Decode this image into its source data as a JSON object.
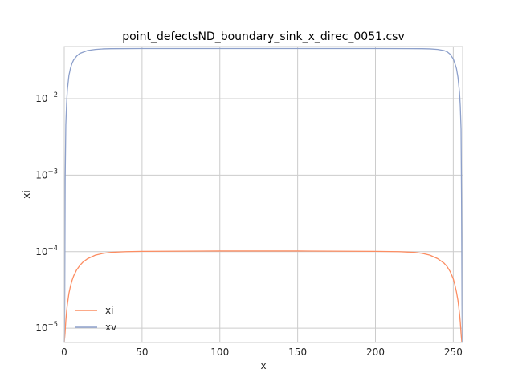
{
  "chart_data": {
    "type": "line",
    "title": "point_defectsND_boundary_sink_x_direc_0051.csv",
    "xlabel": "x",
    "ylabel": "xi",
    "xlim": [
      0,
      256
    ],
    "ylim": [
      6.5e-06,
      0.048
    ],
    "yscale": "log",
    "grid": true,
    "legend_position": "lower-left",
    "x_ticks": [
      {
        "value": 0,
        "label": "0"
      },
      {
        "value": 50,
        "label": "50"
      },
      {
        "value": 100,
        "label": "100"
      },
      {
        "value": 150,
        "label": "150"
      },
      {
        "value": 200,
        "label": "200"
      },
      {
        "value": 250,
        "label": "250"
      }
    ],
    "y_ticks": [
      {
        "value": 1e-05,
        "base": "10",
        "exp": "−5"
      },
      {
        "value": 0.0001,
        "base": "10",
        "exp": "−4"
      },
      {
        "value": 0.001,
        "base": "10",
        "exp": "−3"
      },
      {
        "value": 0.01,
        "base": "10",
        "exp": "−2"
      }
    ],
    "series": [
      {
        "name": "xi",
        "color": "#fc8d62",
        "x": [
          0,
          0.5,
          1,
          1.5,
          2,
          3,
          4,
          5,
          6,
          8,
          10,
          12,
          15,
          20,
          25,
          30,
          40,
          50,
          100,
          150,
          200,
          215,
          225,
          230,
          235,
          240,
          244,
          246,
          248,
          250,
          251,
          252,
          253,
          253.5,
          254,
          254.5,
          255,
          255.5
        ],
        "values": [
          6.5e-06,
          8.5e-06,
          1.25e-05,
          1.65e-05,
          2.05e-05,
          2.85e-05,
          3.55e-05,
          4.2e-05,
          4.8e-05,
          5.8e-05,
          6.6e-05,
          7.3e-05,
          8.1e-05,
          9e-05,
          9.5e-05,
          9.8e-05,
          0.0001,
          0.000101,
          0.000102,
          0.000102,
          0.000101,
          0.0001,
          9.8e-05,
          9.5e-05,
          9e-05,
          8.1e-05,
          7.1e-05,
          6.4e-05,
          5.5e-05,
          4.4e-05,
          3.7e-05,
          3e-05,
          2.3e-05,
          1.9e-05,
          1.55e-05,
          1.2e-05,
          8.5e-06,
          6.5e-06
        ]
      },
      {
        "name": "xv",
        "color": "#8da0cb",
        "x": [
          0,
          0.3,
          0.6,
          1,
          1.5,
          2,
          3,
          4,
          5,
          6,
          8,
          10,
          15,
          20,
          25,
          30,
          50,
          100,
          150,
          200,
          230,
          235,
          240,
          244,
          246,
          248,
          250,
          251,
          252,
          253,
          254,
          254.5,
          255,
          255.3,
          255.6,
          255.8
        ],
        "values": [
          6.5e-06,
          2e-05,
          0.0009,
          0.0045,
          0.0085,
          0.013,
          0.02,
          0.025,
          0.029,
          0.032,
          0.036,
          0.039,
          0.0425,
          0.044,
          0.0447,
          0.045,
          0.0452,
          0.0452,
          0.0452,
          0.0452,
          0.045,
          0.0447,
          0.044,
          0.0425,
          0.041,
          0.038,
          0.033,
          0.029,
          0.025,
          0.019,
          0.012,
          0.008,
          0.004,
          0.0005,
          2e-05,
          6.5e-06
        ]
      }
    ]
  }
}
